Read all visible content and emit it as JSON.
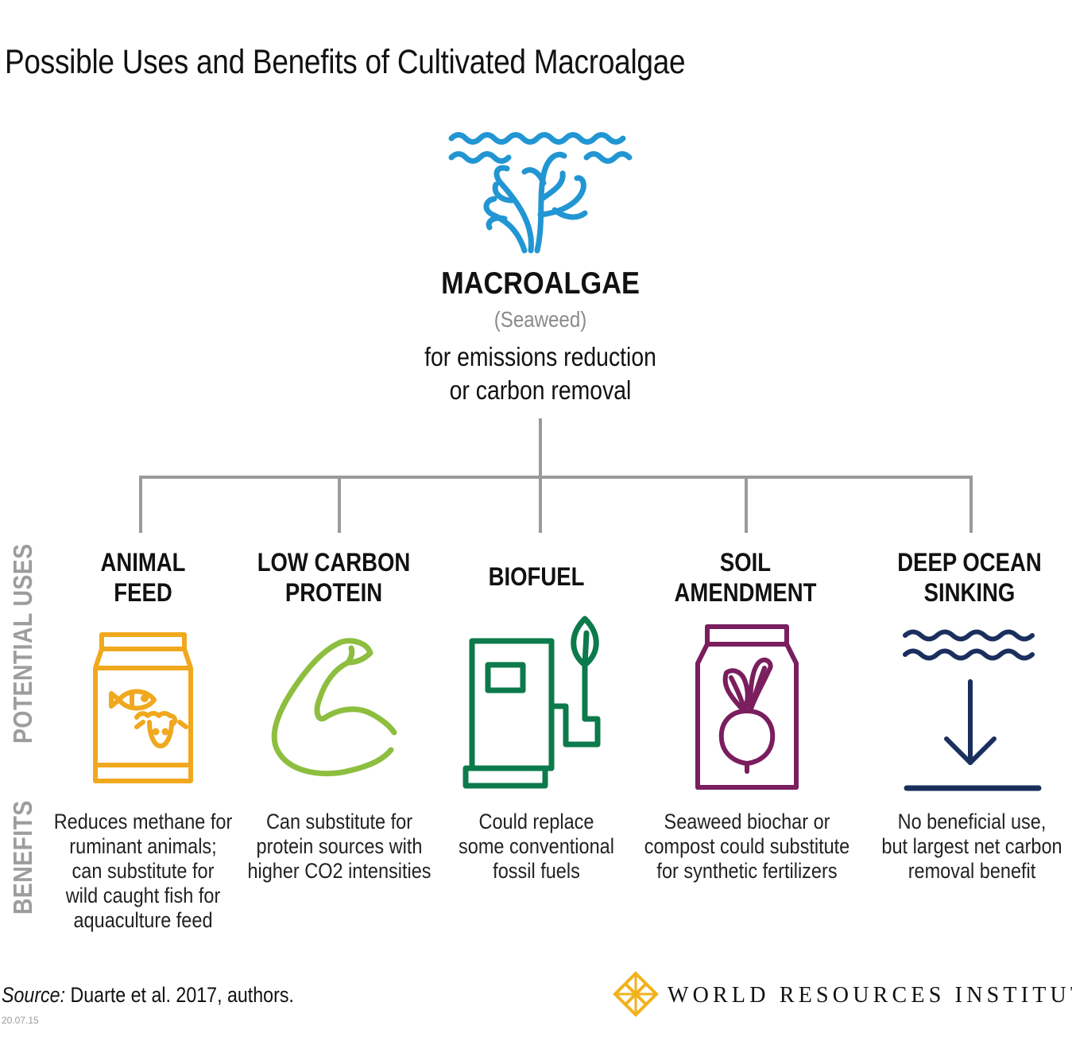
{
  "title": "Possible Uses and Benefits of Cultivated Macroalgae",
  "center": {
    "name": "MACROALGAE",
    "subtitle": "(Seaweed)",
    "description_line1": "for emissions reduction",
    "description_line2": "or carbon removal"
  },
  "side_labels": {
    "uses": "POTENTIAL USES",
    "benefits": "BENEFITS"
  },
  "uses": [
    {
      "title_line1": "ANIMAL",
      "title_line2": "FEED",
      "icon": "feed-bag-icon",
      "color": "#f0a81e",
      "benefit": [
        "Reduces methane for",
        "ruminant animals;",
        "can substitute for",
        "wild caught fish for",
        "aquaculture feed"
      ]
    },
    {
      "title_line1": "LOW CARBON",
      "title_line2": "PROTEIN",
      "icon": "flexed-arm-icon",
      "color": "#8dbe3f",
      "benefit": [
        "Can substitute for",
        "protein sources with",
        "higher CO2 intensities"
      ]
    },
    {
      "title_line1": "BIOFUEL",
      "title_line2": "",
      "icon": "fuel-pump-leaf-icon",
      "color": "#0c7a4b",
      "benefit": [
        "Could replace",
        "some conventional",
        "fossil fuels"
      ]
    },
    {
      "title_line1": "SOIL",
      "title_line2": "AMENDMENT",
      "icon": "beet-bag-icon",
      "color": "#7a1e5e",
      "benefit": [
        "Seaweed biochar or",
        "compost could substitute",
        "for synthetic fertilizers"
      ]
    },
    {
      "title_line1": "DEEP OCEAN",
      "title_line2": "SINKING",
      "icon": "ocean-sink-arrow-icon",
      "color": "#1b2f5e",
      "benefit": [
        "No beneficial use,",
        "but largest net carbon",
        "removal benefit"
      ]
    }
  ],
  "colors": {
    "seaweed": "#2196d3",
    "connector": "#9a9a9a",
    "label_grey": "#9d9d9d",
    "logo_gold": "#f2b21b"
  },
  "source": {
    "label": "Source:",
    "text": " Duarte et al. 2017, authors."
  },
  "date": "20.07.15",
  "logo": {
    "text": "WORLD RESOURCES INSTITUTE",
    "icon": "wri-lattice-icon"
  }
}
